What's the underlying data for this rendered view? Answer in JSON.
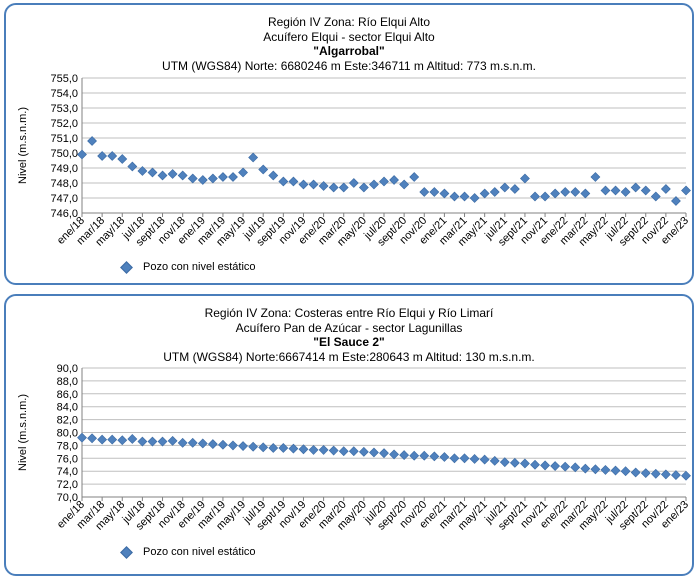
{
  "charts": [
    {
      "title_lines": [
        "Región IV   Zona: Río Elqui Alto",
        "Acuífero Elqui - sector Elqui Alto",
        "\"Algarrobal\"",
        "UTM (WGS84) Norte: 6680246 m    Este:346711 m    Altitud: 773 m.s.n.m."
      ],
      "legend": "Pozo con nivel estático",
      "marker_color": "#4f81bd"
    },
    {
      "title_lines": [
        "Región IV   Zona: Costeras entre Río Elqui y Río Limarí",
        "Acuífero Pan de Azúcar - sector Lagunillas",
        "\"El Sauce 2\"",
        "UTM (WGS84) Norte:6667414 m     Este:280643 m    Altitud: 130 m.s.n.m."
      ],
      "legend": "Pozo con nivel estático",
      "marker_color": "#4f81bd"
    }
  ],
  "chart_data": [
    {
      "type": "scatter",
      "ylabel": "Nivel (m.s.n.m.)",
      "ylim": [
        746.0,
        755.0
      ],
      "yticks": [
        "746,0",
        "747,0",
        "748,0",
        "749,0",
        "750,0",
        "751,0",
        "752,0",
        "753,0",
        "754,0",
        "755,0"
      ],
      "grid": "horizontal",
      "xlim": [
        "2018-01",
        "2023-01"
      ],
      "xtick_labels": [
        "ene/18",
        "mar/18",
        "may/18",
        "jul/18",
        "sept/18",
        "nov/18",
        "ene/19",
        "mar/19",
        "may/19",
        "jul/19",
        "sept/19",
        "nov/19",
        "ene/20",
        "mar/20",
        "may/20",
        "jul/20",
        "sept/20",
        "nov/20",
        "ene/21",
        "mar/21",
        "may/21",
        "jul/21",
        "sept/21",
        "nov/21",
        "ene/22",
        "mar/22",
        "may/22",
        "jul/22",
        "sept/22",
        "nov/22",
        "ene/23"
      ],
      "series": [
        {
          "name": "Pozo con nivel estático",
          "x": [
            "2018-01",
            "2018-02",
            "2018-03",
            "2018-04",
            "2018-05",
            "2018-06",
            "2018-07",
            "2018-08",
            "2018-09",
            "2018-10",
            "2018-11",
            "2018-12",
            "2019-01",
            "2019-02",
            "2019-03",
            "2019-04",
            "2019-05",
            "2019-06",
            "2019-07",
            "2019-08",
            "2019-09",
            "2019-10",
            "2019-11",
            "2019-12",
            "2020-01",
            "2020-02",
            "2020-03",
            "2020-04",
            "2020-05",
            "2020-06",
            "2020-07",
            "2020-08",
            "2020-09",
            "2020-10",
            "2020-11",
            "2020-12",
            "2021-01",
            "2021-02",
            "2021-03",
            "2021-04",
            "2021-05",
            "2021-06",
            "2021-07",
            "2021-08",
            "2021-09",
            "2021-10",
            "2021-11",
            "2021-12",
            "2022-01",
            "2022-02",
            "2022-03",
            "2022-04",
            "2022-05",
            "2022-06",
            "2022-07",
            "2022-08",
            "2022-09",
            "2022-10",
            "2022-11",
            "2022-12",
            "2023-01"
          ],
          "y": [
            749.9,
            750.8,
            749.8,
            749.8,
            749.6,
            749.1,
            748.8,
            748.7,
            748.5,
            748.6,
            748.5,
            748.3,
            748.2,
            748.3,
            748.4,
            748.4,
            748.7,
            749.7,
            748.9,
            748.5,
            748.1,
            748.1,
            747.9,
            747.9,
            747.8,
            747.7,
            747.7,
            748.0,
            747.7,
            747.9,
            748.1,
            748.2,
            747.9,
            748.4,
            747.4,
            747.4,
            747.3,
            747.1,
            747.1,
            747.0,
            747.3,
            747.4,
            747.7,
            747.6,
            748.3,
            747.1,
            747.1,
            747.3,
            747.4,
            747.4,
            747.3,
            748.4,
            747.5,
            747.5,
            747.4,
            747.7,
            747.5,
            747.1,
            747.6,
            746.8,
            747.5
          ]
        }
      ]
    },
    {
      "type": "scatter",
      "ylabel": "Nivel (m.s.n.m.)",
      "ylim": [
        70.0,
        90.0
      ],
      "yticks": [
        "70,0",
        "72,0",
        "74,0",
        "76,0",
        "78,0",
        "80,0",
        "82,0",
        "84,0",
        "86,0",
        "88,0",
        "90,0"
      ],
      "grid": "horizontal",
      "xlim": [
        "2018-01",
        "2023-01"
      ],
      "xtick_labels": [
        "ene/18",
        "mar/18",
        "may/18",
        "jul/18",
        "sept/18",
        "nov/18",
        "ene/19",
        "mar/19",
        "may/19",
        "jul/19",
        "sept/19",
        "nov/19",
        "ene/20",
        "mar/20",
        "may/20",
        "jul/20",
        "sept/20",
        "nov/20",
        "ene/21",
        "mar/21",
        "may/21",
        "jul/21",
        "sept/21",
        "nov/21",
        "ene/22",
        "mar/22",
        "may/22",
        "jul/22",
        "sept/22",
        "nov/22",
        "ene/23"
      ],
      "series": [
        {
          "name": "Pozo con nivel estático",
          "x": [
            "2018-01",
            "2018-02",
            "2018-03",
            "2018-04",
            "2018-05",
            "2018-06",
            "2018-07",
            "2018-08",
            "2018-09",
            "2018-10",
            "2018-11",
            "2018-12",
            "2019-01",
            "2019-02",
            "2019-03",
            "2019-04",
            "2019-05",
            "2019-06",
            "2019-07",
            "2019-08",
            "2019-09",
            "2019-10",
            "2019-11",
            "2019-12",
            "2020-01",
            "2020-02",
            "2020-03",
            "2020-04",
            "2020-05",
            "2020-06",
            "2020-07",
            "2020-08",
            "2020-09",
            "2020-10",
            "2020-11",
            "2020-12",
            "2021-01",
            "2021-02",
            "2021-03",
            "2021-04",
            "2021-05",
            "2021-06",
            "2021-07",
            "2021-08",
            "2021-09",
            "2021-10",
            "2021-11",
            "2021-12",
            "2022-01",
            "2022-02",
            "2022-03",
            "2022-04",
            "2022-05",
            "2022-06",
            "2022-07",
            "2022-08",
            "2022-09",
            "2022-10",
            "2022-11",
            "2022-12",
            "2023-01"
          ],
          "y": [
            79.2,
            79.1,
            78.9,
            78.9,
            78.8,
            79.0,
            78.6,
            78.6,
            78.6,
            78.7,
            78.4,
            78.4,
            78.3,
            78.2,
            78.1,
            78.0,
            77.9,
            77.8,
            77.7,
            77.6,
            77.6,
            77.5,
            77.4,
            77.3,
            77.3,
            77.2,
            77.1,
            77.1,
            77.0,
            76.9,
            76.8,
            76.6,
            76.5,
            76.4,
            76.4,
            76.3,
            76.2,
            76.0,
            76.0,
            75.9,
            75.8,
            75.6,
            75.4,
            75.3,
            75.2,
            75.0,
            74.9,
            74.8,
            74.7,
            74.6,
            74.4,
            74.3,
            74.2,
            74.1,
            74.0,
            73.8,
            73.7,
            73.6,
            73.5,
            73.4,
            73.3
          ]
        }
      ]
    }
  ]
}
